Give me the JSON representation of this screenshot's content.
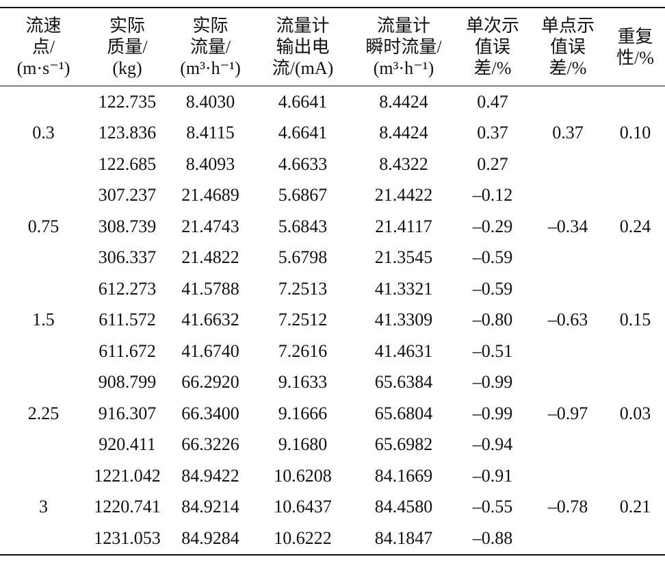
{
  "table": {
    "header": [
      [
        "流速",
        "点/",
        "(m·s⁻¹)"
      ],
      [
        "实际",
        "质量/",
        "(kg)"
      ],
      [
        "实际",
        "流量/",
        "(m³·h⁻¹)"
      ],
      [
        "流量计",
        "输出电",
        "流/(mA)"
      ],
      [
        "流量计",
        "瞬时流量/",
        "(m³·h⁻¹)"
      ],
      [
        "单次示",
        "值误",
        "差/%"
      ],
      [
        "单点示",
        "值误",
        "差/%"
      ],
      [
        "重复",
        "性/%"
      ]
    ],
    "groups": [
      {
        "speed": "0.3",
        "point_error": "0.37",
        "repeatability": "0.10",
        "rows": [
          [
            "122.735",
            "8.4030",
            "4.6641",
            "8.4424",
            "0.47"
          ],
          [
            "123.836",
            "8.4115",
            "4.6641",
            "8.4424",
            "0.37"
          ],
          [
            "122.685",
            "8.4093",
            "4.6633",
            "8.4322",
            "0.27"
          ]
        ]
      },
      {
        "speed": "0.75",
        "point_error": "–0.34",
        "repeatability": "0.24",
        "rows": [
          [
            "307.237",
            "21.4689",
            "5.6867",
            "21.4422",
            "–0.12"
          ],
          [
            "308.739",
            "21.4743",
            "5.6843",
            "21.4117",
            "–0.29"
          ],
          [
            "306.337",
            "21.4822",
            "5.6798",
            "21.3545",
            "–0.59"
          ]
        ]
      },
      {
        "speed": "1.5",
        "point_error": "–0.63",
        "repeatability": "0.15",
        "rows": [
          [
            "612.273",
            "41.5788",
            "7.2513",
            "41.3321",
            "–0.59"
          ],
          [
            "611.572",
            "41.6632",
            "7.2512",
            "41.3309",
            "–0.80"
          ],
          [
            "611.672",
            "41.6740",
            "7.2616",
            "41.4631",
            "–0.51"
          ]
        ]
      },
      {
        "speed": "2.25",
        "point_error": "–0.97",
        "repeatability": "0.03",
        "rows": [
          [
            "908.799",
            "66.2920",
            "9.1633",
            "65.6384",
            "–0.99"
          ],
          [
            "916.307",
            "66.3400",
            "9.1666",
            "65.6804",
            "–0.99"
          ],
          [
            "920.411",
            "66.3226",
            "9.1680",
            "65.6982",
            "–0.94"
          ]
        ]
      },
      {
        "speed": "3",
        "point_error": "–0.78",
        "repeatability": "0.21",
        "rows": [
          [
            "1221.042",
            "84.9422",
            "10.6208",
            "84.1669",
            "–0.91"
          ],
          [
            "1220.741",
            "84.9214",
            "10.6437",
            "84.4580",
            "–0.55"
          ],
          [
            "1231.053",
            "84.9284",
            "10.6222",
            "84.1847",
            "–0.88"
          ]
        ]
      }
    ]
  }
}
